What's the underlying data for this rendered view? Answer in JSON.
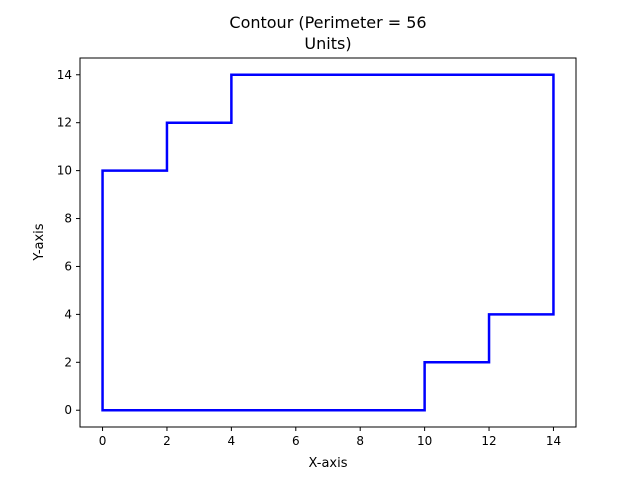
{
  "chart_data": {
    "type": "line",
    "title_lines": [
      "Contour (Perimeter = 56",
      "Units)"
    ],
    "xlabel": "X-axis",
    "ylabel": "Y-axis",
    "xlim": [
      -0.7,
      14.7
    ],
    "ylim": [
      -0.7,
      14.7
    ],
    "x_ticks": [
      0,
      2,
      4,
      6,
      8,
      10,
      12,
      14
    ],
    "y_ticks": [
      0,
      2,
      4,
      6,
      8,
      10,
      12,
      14
    ],
    "grid": false,
    "legend": "none",
    "series": [
      {
        "color": "#0000ff",
        "points": [
          [
            0,
            0
          ],
          [
            10,
            0
          ],
          [
            10,
            2
          ],
          [
            12,
            2
          ],
          [
            12,
            4
          ],
          [
            14,
            4
          ],
          [
            14,
            14
          ],
          [
            4,
            14
          ],
          [
            4,
            12
          ],
          [
            2,
            12
          ],
          [
            2,
            10
          ],
          [
            0,
            10
          ],
          [
            0,
            0
          ]
        ]
      }
    ]
  }
}
